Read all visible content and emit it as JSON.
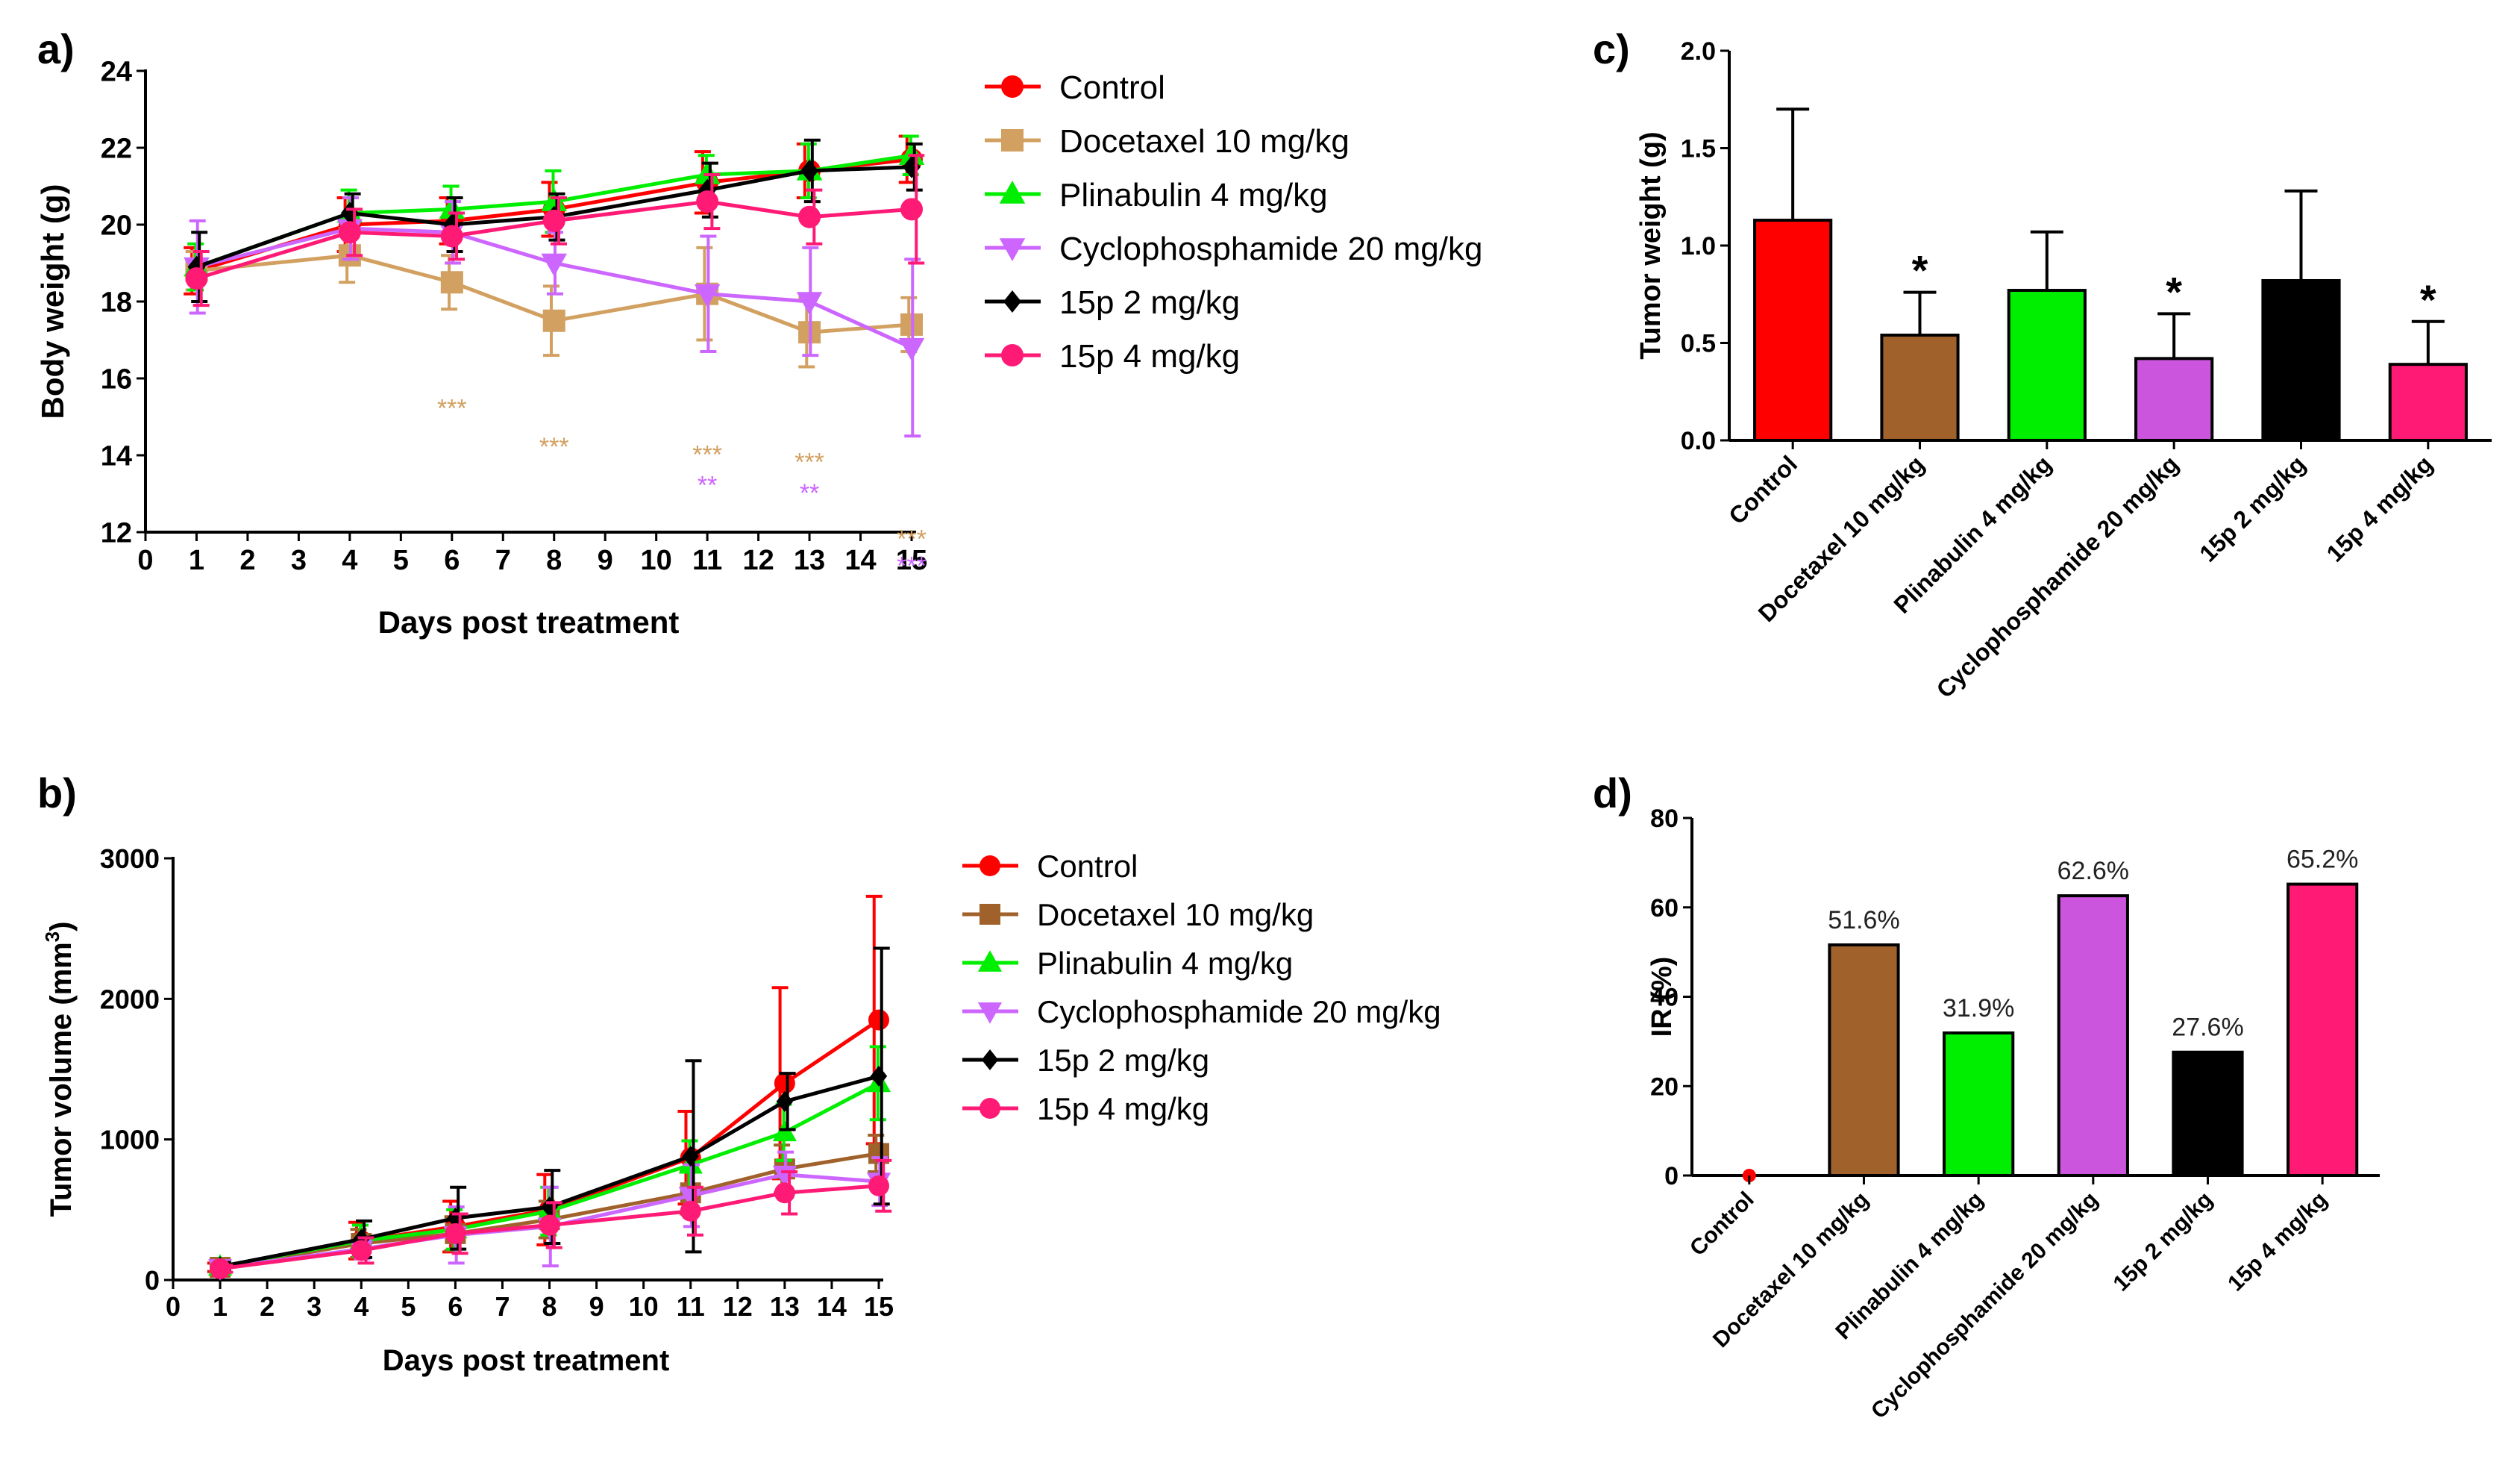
{
  "chart_data": [
    {
      "id": "a",
      "type": "line",
      "panel_label": "a)",
      "xlabel": "Days post treatment",
      "ylabel": "Body weight (g)",
      "xlim": [
        0,
        15
      ],
      "ylim": [
        12,
        24
      ],
      "xticks": [
        0,
        1,
        2,
        3,
        4,
        5,
        6,
        7,
        8,
        9,
        10,
        11,
        12,
        13,
        14,
        15
      ],
      "yticks": [
        12,
        14,
        16,
        18,
        20,
        22,
        24
      ],
      "legend_position": "right",
      "x": [
        1,
        4,
        6,
        8,
        11,
        13,
        15
      ],
      "series": [
        {
          "name": "Control",
          "color": "#ff0000",
          "marker": "circle",
          "values": [
            18.8,
            20.0,
            20.1,
            20.4,
            21.1,
            21.4,
            21.7
          ],
          "errors": [
            0.6,
            0.7,
            0.6,
            0.7,
            0.8,
            0.7,
            0.6
          ]
        },
        {
          "name": "Docetaxel  10 mg/kg",
          "color": "#d2a060",
          "marker": "square",
          "values": [
            18.8,
            19.2,
            18.5,
            17.5,
            18.2,
            17.2,
            17.4
          ],
          "errors": [
            0.5,
            0.7,
            0.7,
            0.9,
            1.2,
            0.9,
            0.7
          ]
        },
        {
          "name": "Plinabulin  4 mg/kg",
          "color": "#00ee00",
          "marker": "triangle-up",
          "values": [
            18.9,
            20.3,
            20.4,
            20.6,
            21.3,
            21.4,
            21.8
          ],
          "errors": [
            0.6,
            0.6,
            0.6,
            0.8,
            0.5,
            0.7,
            0.5
          ]
        },
        {
          "name": "Cyclophosphamide  20 mg/kg",
          "color": "#cc66ff",
          "marker": "triangle-down",
          "values": [
            18.9,
            19.9,
            19.8,
            19.0,
            18.2,
            18.0,
            16.8
          ],
          "errors": [
            1.2,
            0.8,
            0.8,
            0.8,
            1.5,
            1.4,
            2.3
          ]
        },
        {
          "name": "15p  2 mg/kg",
          "color": "#000000",
          "marker": "diamond",
          "values": [
            18.9,
            20.3,
            20.0,
            20.2,
            20.9,
            21.4,
            21.5
          ],
          "errors": [
            0.9,
            0.5,
            0.7,
            0.6,
            0.7,
            0.8,
            0.6
          ]
        },
        {
          "name": "15p  4 mg/kg",
          "color": "#ff1a75",
          "marker": "circle",
          "values": [
            18.6,
            19.8,
            19.7,
            20.1,
            20.6,
            20.2,
            20.4
          ],
          "errors": [
            0.7,
            0.6,
            0.6,
            0.6,
            0.7,
            0.7,
            1.4
          ]
        }
      ],
      "annotations": [
        {
          "x": 6,
          "y": 15.0,
          "text": "***",
          "color": "#d2a060"
        },
        {
          "x": 8,
          "y": 14.0,
          "text": "***",
          "color": "#d2a060"
        },
        {
          "x": 11,
          "y": 13.8,
          "text": "***",
          "color": "#d2a060"
        },
        {
          "x": 11,
          "y": 13.0,
          "text": "**",
          "color": "#cc66ff"
        },
        {
          "x": 13,
          "y": 13.6,
          "text": "***",
          "color": "#d2a060"
        },
        {
          "x": 13,
          "y": 12.8,
          "text": "**",
          "color": "#cc66ff"
        },
        {
          "x": 15,
          "y": 11.6,
          "text": "***",
          "color": "#d2a060"
        },
        {
          "x": 15,
          "y": 10.9,
          "text": "***",
          "color": "#cc66ff"
        }
      ]
    },
    {
      "id": "b",
      "type": "line",
      "panel_label": "b)",
      "xlabel": "Days post treatment",
      "ylabel": "Tumor volume (mm",
      "ylabel_superscript": "3",
      "ylabel_suffix": ")",
      "xlim": [
        0,
        15
      ],
      "ylim": [
        0,
        3000
      ],
      "xticks": [
        0,
        1,
        2,
        3,
        4,
        5,
        6,
        7,
        8,
        9,
        10,
        11,
        12,
        13,
        14,
        15
      ],
      "yticks": [
        0,
        1000,
        2000,
        3000
      ],
      "legend_position": "right",
      "x": [
        1,
        4,
        6,
        8,
        11,
        13,
        15
      ],
      "series": [
        {
          "name": "Control",
          "color": "#ff0000",
          "marker": "circle",
          "values": [
            90,
            280,
            380,
            500,
            870,
            1400,
            1850
          ],
          "errors": [
            30,
            130,
            180,
            250,
            330,
            680,
            880
          ]
        },
        {
          "name": "Docetaxel  10 mg/kg",
          "color": "#a0622a",
          "marker": "square",
          "values": [
            90,
            260,
            330,
            430,
            620,
            790,
            900
          ],
          "errors": [
            30,
            100,
            120,
            130,
            150,
            170,
            130
          ]
        },
        {
          "name": "Plinabulin  4 mg/kg",
          "color": "#00ee00",
          "marker": "triangle-up",
          "values": [
            95,
            280,
            360,
            490,
            820,
            1050,
            1400
          ],
          "errors": [
            30,
            110,
            140,
            170,
            170,
            200,
            260
          ]
        },
        {
          "name": "Cyclophosphamide  20 mg/kg",
          "color": "#cc66ff",
          "marker": "triangle-down",
          "values": [
            85,
            220,
            320,
            380,
            600,
            750,
            700
          ],
          "errors": [
            25,
            70,
            200,
            280,
            220,
            160,
            170
          ]
        },
        {
          "name": "15p  2 mg/kg",
          "color": "#000000",
          "marker": "diamond",
          "values": [
            95,
            290,
            440,
            520,
            880,
            1270,
            1450
          ],
          "errors": [
            30,
            130,
            220,
            260,
            680,
            200,
            910
          ]
        },
        {
          "name": "15p  4 mg/kg",
          "color": "#ff1a75",
          "marker": "circle",
          "values": [
            80,
            210,
            330,
            390,
            490,
            620,
            670
          ],
          "errors": [
            25,
            90,
            140,
            160,
            170,
            150,
            180
          ]
        }
      ]
    },
    {
      "id": "c",
      "type": "bar",
      "panel_label": "c)",
      "ylabel": "Tumor weight (g)",
      "ylim": [
        0,
        2.0
      ],
      "yticks": [
        "0.0",
        "0.5",
        "1.0",
        "1.5",
        "2.0"
      ],
      "categories": [
        "Control",
        "Docetaxel  10 mg/kg",
        "Plinabulin  4 mg/kg",
        "Cyclophosphamide  20 mg/kg",
        "15p  2 mg/kg",
        "15p  4 mg/kg"
      ],
      "values": [
        1.13,
        0.54,
        0.77,
        0.42,
        0.82,
        0.39
      ],
      "errors": [
        0.57,
        0.22,
        0.3,
        0.23,
        0.46,
        0.22
      ],
      "colors": [
        "#ff0000",
        "#a0622a",
        "#00ee00",
        "#cc55dd",
        "#000000",
        "#ff1a75"
      ],
      "significance": [
        "",
        "*",
        "",
        "*",
        "",
        "*"
      ]
    },
    {
      "id": "d",
      "type": "bar",
      "panel_label": "d)",
      "ylabel": "IR (%)",
      "ylim": [
        0,
        80
      ],
      "yticks": [
        "0",
        "20",
        "40",
        "60",
        "80"
      ],
      "categories": [
        "Control",
        "Docetaxel 10 mg/kg",
        "Plinabulin 4 mg/kg",
        "Cyclophosphamide 20 mg/kg",
        "15p 2 mg/kg",
        "15p 4 mg/kg"
      ],
      "values": [
        0,
        51.6,
        31.9,
        62.6,
        27.6,
        65.2
      ],
      "labels": [
        "",
        "51.6%",
        "31.9%",
        "62.6%",
        "27.6%",
        "65.2%"
      ],
      "colors": [
        "#ff0000",
        "#a0622a",
        "#00ee00",
        "#cc55dd",
        "#000000",
        "#ff1a75"
      ]
    }
  ]
}
